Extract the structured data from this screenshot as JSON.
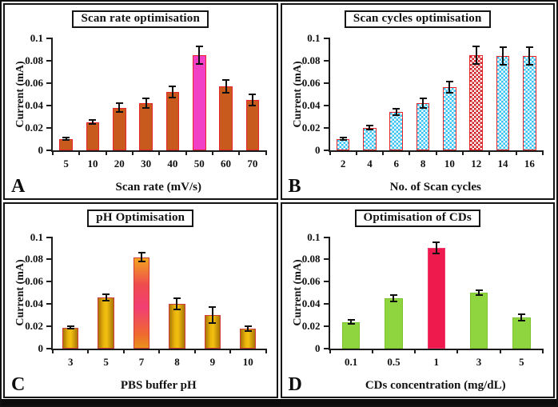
{
  "figure": {
    "background": "#ffffff",
    "border_color": "#111111",
    "bottom_strip_color": "#0b0b0b"
  },
  "chart_data": [
    {
      "type": "bar",
      "panel": "A",
      "title": "Scan rate optimisation",
      "xlabel": "Scan rate (mV/s)",
      "ylabel": "Current (mA)",
      "categories": [
        "5",
        "10",
        "20",
        "30",
        "40",
        "50",
        "60",
        "70"
      ],
      "values": [
        0.01,
        0.025,
        0.038,
        0.042,
        0.052,
        0.085,
        0.057,
        0.045
      ],
      "errors": [
        0.001,
        0.002,
        0.004,
        0.004,
        0.005,
        0.008,
        0.006,
        0.005
      ],
      "ylim": [
        0,
        0.1
      ],
      "yticks": [
        0,
        0.02,
        0.04,
        0.06,
        0.08,
        0.1
      ],
      "ytick_labels": [
        "0",
        "0.02",
        "0.04",
        "0.06",
        "0.08",
        "0.1"
      ],
      "grid": false,
      "legend": "none",
      "highlight_index": 5,
      "style": {
        "bar_fill": "#c95a1d",
        "bar_border": "#e6262b",
        "highlight_fill": "#f13fc6",
        "highlight_border": "#e6262b",
        "pattern": "none",
        "bar_width_frac": 0.5
      }
    },
    {
      "type": "bar",
      "panel": "B",
      "title": "Scan cycles optimisation",
      "xlabel": "No. of Scan cycles",
      "ylabel": "Current (mA)",
      "categories": [
        "2",
        "4",
        "6",
        "8",
        "10",
        "12",
        "14",
        "16"
      ],
      "values": [
        0.01,
        0.02,
        0.034,
        0.042,
        0.056,
        0.085,
        0.084,
        0.084
      ],
      "errors": [
        0.001,
        0.002,
        0.003,
        0.004,
        0.005,
        0.008,
        0.008,
        0.008
      ],
      "ylim": [
        0,
        0.1
      ],
      "yticks": [
        0,
        0.02,
        0.04,
        0.06,
        0.08,
        0.1
      ],
      "ytick_labels": [
        "0",
        "0.02",
        "0.04",
        "0.06",
        "0.08",
        "0.1"
      ],
      "grid": false,
      "legend": "none",
      "highlight_index": 5,
      "style": {
        "bar_fill": "#35c2f2",
        "bar_border": "#e6262b",
        "highlight_fill": "#cf2127",
        "highlight_border": "#e6262b",
        "pattern": "checker",
        "bar_width_frac": 0.5
      }
    },
    {
      "type": "bar",
      "panel": "C",
      "title": "pH Optimisation",
      "xlabel": "PBS buffer pH",
      "ylabel": "Current (mA)",
      "categories": [
        "3",
        "5",
        "7",
        "8",
        "9",
        "10"
      ],
      "values": [
        0.019,
        0.046,
        0.082,
        0.04,
        0.03,
        0.018
      ],
      "errors": [
        0.001,
        0.003,
        0.004,
        0.005,
        0.007,
        0.002
      ],
      "ylim": [
        0,
        0.1
      ],
      "yticks": [
        0,
        0.02,
        0.04,
        0.06,
        0.08,
        0.1
      ],
      "ytick_labels": [
        "0",
        "0.02",
        "0.04",
        "0.06",
        "0.08",
        "0.1"
      ],
      "grid": false,
      "legend": "none",
      "highlight_index": 2,
      "style": {
        "bar_fill": "linear-gradient(90deg,#a87506 0%,#eab50c 35%,#f2c011 55%,#a87506 100%)",
        "bar_border": "#d03c3c",
        "highlight_fill": "linear-gradient(180deg,#f2a51f 0%,#ef4a4e 30%,#f23e74 55%,#ef6a2f 85%,#e8921c 100%)",
        "highlight_border": "#d03c3c",
        "pattern": "none",
        "bar_width_frac": 0.46
      }
    },
    {
      "type": "bar",
      "panel": "D",
      "title": "Optimisation of CDs",
      "xlabel": "CDs concentration (mg/dL)",
      "ylabel": "Current (mA)",
      "categories": [
        "0.1",
        "0.5",
        "1",
        "3",
        "5"
      ],
      "values": [
        0.024,
        0.045,
        0.09,
        0.05,
        0.028
      ],
      "errors": [
        0.002,
        0.003,
        0.005,
        0.002,
        0.003
      ],
      "ylim": [
        0,
        0.1
      ],
      "yticks": [
        0,
        0.02,
        0.04,
        0.06,
        0.08,
        0.1
      ],
      "ytick_labels": [
        "0",
        "0.02",
        "0.04",
        "0.06",
        "0.08",
        "0.1"
      ],
      "grid": false,
      "legend": "none",
      "highlight_index": 2,
      "style": {
        "bar_fill": "#8ed53f",
        "bar_border": "#7cc32f",
        "highlight_fill": "#ee1a4d",
        "highlight_border": "#f03a6e",
        "pattern": "none",
        "bar_width_frac": 0.42
      }
    }
  ]
}
